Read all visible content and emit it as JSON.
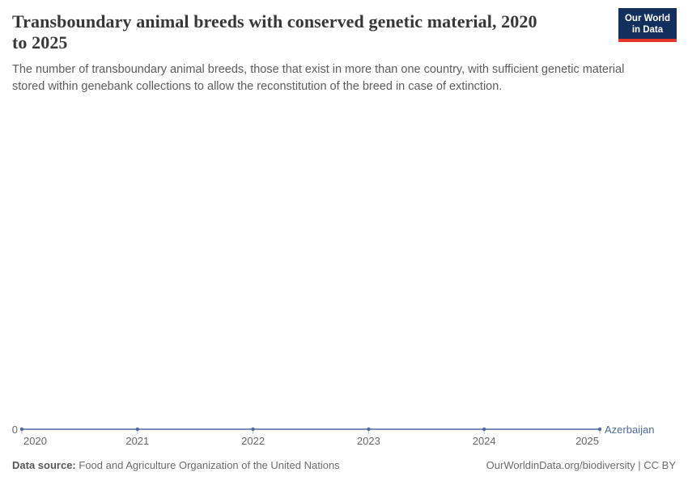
{
  "header": {
    "title_line1": "Transboundary animal breeds with conserved genetic material, 2020",
    "title_line2": "to 2025",
    "subtitle_line1": "The number of transboundary animal breeds, those that exist in more than one country, with sufficient genetic material",
    "subtitle_line2": "stored within genebank collections to allow the reconstitution of the breed in case of extinction.",
    "logo": {
      "line1": "Our World",
      "line2": "in Data",
      "bg_color": "#12305B",
      "accent_color": "#E2362B"
    }
  },
  "chart": {
    "axis": {
      "y_zero_label": "0",
      "ticks": [
        "2020",
        "2021",
        "2022",
        "2023",
        "2024",
        "2025"
      ]
    },
    "series_label": "Azerbaijan",
    "line_color": "#4C6A9C",
    "tick_color": "#bbbbbb"
  },
  "chart_data": {
    "type": "line",
    "title": "Transboundary animal breeds with conserved genetic material, 2020 to 2025",
    "subtitle": "The number of transboundary animal breeds, those that exist in more than one country, with sufficient genetic material stored within genebank collections to allow the reconstitution of the breed in case of extinction.",
    "x": [
      2020,
      2021,
      2022,
      2023,
      2024,
      2025
    ],
    "series": [
      {
        "name": "Azerbaijan",
        "values": [
          0,
          0,
          0,
          0,
          0,
          0
        ],
        "color": "#4C6A9C"
      }
    ],
    "xlabel": "",
    "ylabel": "",
    "y_ticks_shown": [
      0
    ],
    "grid": false,
    "legend_position": "end-of-line-label",
    "markers": true
  },
  "footer": {
    "source_label": "Data source:",
    "source_value": "Food and Agriculture Organization of the United Nations",
    "attribution_link": "OurWorldinData.org/biodiversity",
    "license": "| CC BY"
  }
}
